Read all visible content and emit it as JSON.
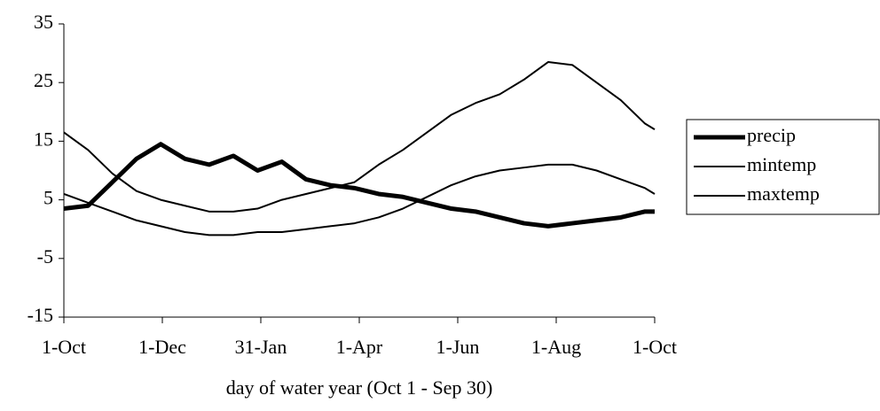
{
  "chart_data": {
    "type": "line",
    "x_label": "day of water year (Oct 1 - Sep 30)",
    "x": [
      0,
      15,
      30,
      45,
      60,
      75,
      90,
      105,
      120,
      135,
      150,
      165,
      180,
      195,
      210,
      225,
      240,
      255,
      270,
      285,
      300,
      315,
      330,
      345,
      360,
      366
    ],
    "series": [
      {
        "name": "precip",
        "color": "#000000",
        "width": 5,
        "values": [
          3.5,
          4,
          8,
          12,
          14.5,
          12,
          11,
          12.5,
          10,
          11.5,
          8.5,
          7.5,
          7,
          6,
          5.5,
          4.5,
          3.5,
          3,
          2,
          1,
          0.5,
          1,
          1.5,
          2,
          3,
          3
        ]
      },
      {
        "name": "mintemp",
        "color": "#000000",
        "width": 2,
        "values": [
          6,
          4.5,
          3,
          1.5,
          0.5,
          -0.5,
          -1,
          -1,
          -0.5,
          -0.5,
          0,
          0.5,
          1,
          2,
          3.5,
          5.5,
          7.5,
          9,
          10,
          10.5,
          11,
          11,
          10,
          8.5,
          7,
          6
        ]
      },
      {
        "name": "maxtemp",
        "color": "#000000",
        "width": 2,
        "values": [
          16.5,
          13.5,
          9.5,
          6.5,
          5,
          4,
          3,
          3,
          3.5,
          5,
          6,
          7,
          8,
          11,
          13.5,
          16.5,
          19.5,
          21.5,
          23,
          25.5,
          28.5,
          28,
          25,
          22,
          18,
          17
        ]
      }
    ],
    "xlim": [
      0,
      366
    ],
    "xticks": [
      {
        "value": 0,
        "label": "1-Oct"
      },
      {
        "value": 61,
        "label": "1-Dec"
      },
      {
        "value": 122,
        "label": "31-Jan"
      },
      {
        "value": 183,
        "label": "1-Apr"
      },
      {
        "value": 244,
        "label": "1-Jun"
      },
      {
        "value": 305,
        "label": "1-Aug"
      },
      {
        "value": 366,
        "label": "1-Oct"
      }
    ],
    "ylim": [
      -15,
      35
    ],
    "yticks": [
      -15,
      -5,
      5,
      15,
      25,
      35
    ],
    "grid": false,
    "legend": "right"
  }
}
